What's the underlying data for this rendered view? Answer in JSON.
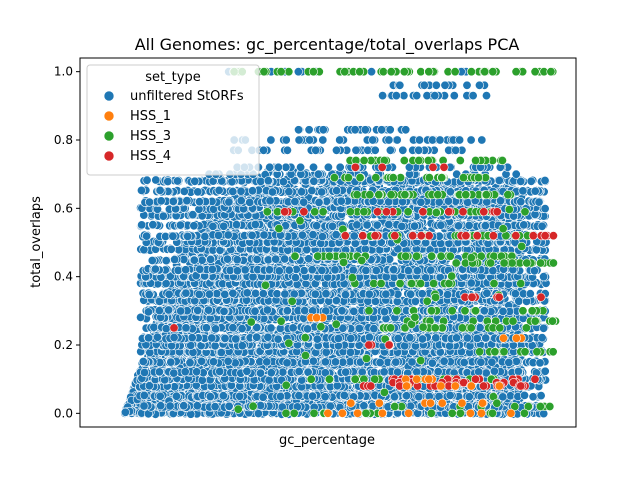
{
  "chart_data": {
    "type": "scatter",
    "title": "All Genomes: gc_percentage/total_overlaps PCA",
    "xlabel": "gc_percentage",
    "ylabel": "total_overlaps",
    "ylim": [
      -0.04,
      1.04
    ],
    "yticks": [
      0.0,
      0.2,
      0.4,
      0.6,
      0.8,
      1.0
    ],
    "ytick_labels": [
      "0.0",
      "0.2",
      "0.4",
      "0.6",
      "0.8",
      "1.0"
    ],
    "xticks_visible": false,
    "grid": false,
    "legend": {
      "title": "set_type",
      "placement": "top-left",
      "entries": [
        {
          "label": "unfiltered StORFs",
          "color": "#1f77b4"
        },
        {
          "label": "HSS_1",
          "color": "#ff7f0e"
        },
        {
          "label": "HSS_3",
          "color": "#2ca02c"
        },
        {
          "label": "HSS_4",
          "color": "#d62728"
        }
      ]
    },
    "series": [
      {
        "name": "unfiltered StORFs",
        "color": "#1f77b4",
        "x_range_note_levels": [
          0.0,
          0.02,
          0.05,
          0.08,
          0.1,
          0.12,
          0.15,
          0.18,
          0.2,
          0.22,
          0.25,
          0.28,
          0.3,
          0.33,
          0.35,
          0.38,
          0.4,
          0.42,
          0.45,
          0.48,
          0.5,
          0.52,
          0.55,
          0.58,
          0.6,
          0.62,
          0.65,
          0.68,
          0.7,
          0.72,
          0.77,
          0.8,
          0.83,
          0.93,
          0.96,
          1.0
        ]
      },
      {
        "name": "HSS_1",
        "color": "#ff7f0e",
        "y_levels": [
          0.0,
          0.03,
          0.08,
          0.1,
          0.22,
          0.28
        ]
      },
      {
        "name": "HSS_3",
        "color": "#2ca02c",
        "y_levels": [
          0.0,
          0.02,
          0.1,
          0.18,
          0.25,
          0.27,
          0.3,
          0.35,
          0.38,
          0.44,
          0.46,
          0.52,
          0.59,
          0.64,
          0.69,
          0.74,
          1.0
        ]
      },
      {
        "name": "HSS_4",
        "color": "#d62728",
        "y_levels": [
          0.08,
          0.09,
          0.1,
          0.2,
          0.25,
          0.34,
          0.52,
          0.59,
          0.72
        ]
      }
    ]
  }
}
